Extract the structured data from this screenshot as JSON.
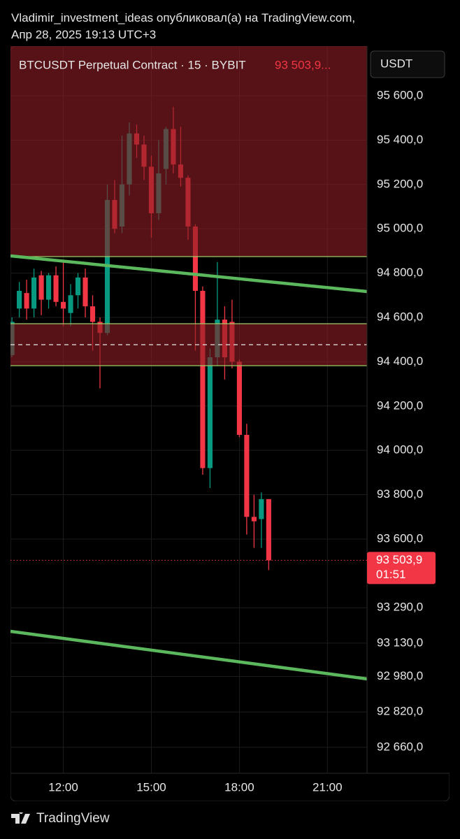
{
  "publisher": "Vladimir_investment_ideas опубликовал(а) на TradingView.com,",
  "date": "Апр 28, 2025 19:13 UTC+3",
  "currency_button": "USDT",
  "footer": "TradingView",
  "chart_data": {
    "type": "candlestick",
    "title": "BTCUSDT Perpetual Contract · 15 · BYBIT",
    "header_price": "93 503,9...",
    "up_color": "#089981",
    "down_color": "#f23645",
    "x": [
      10.25,
      10.5,
      10.75,
      11,
      11.25,
      11.5,
      11.75,
      12,
      12.25,
      12.5,
      12.75,
      13,
      13.25,
      13.5,
      13.75,
      14,
      14.25,
      14.5,
      14.75,
      15,
      15.25,
      15.5,
      15.75,
      16,
      16.25,
      16.5,
      16.75,
      17,
      17.25,
      17.5,
      17.75,
      18,
      18.25,
      18.5,
      18.75,
      19
    ],
    "open": [
      94430,
      94640,
      94710,
      94640,
      94790,
      94680,
      94790,
      94670,
      94620,
      94700,
      94780,
      94650,
      94580,
      94530,
      95130,
      95010,
      95200,
      95430,
      95380,
      95280,
      95070,
      95270,
      95450,
      95290,
      95230,
      95010,
      94720,
      93920,
      94420,
      94590,
      94580,
      94400,
      94070,
      93700,
      93690,
      93780
    ],
    "high": [
      94600,
      94760,
      94770,
      94820,
      94810,
      94800,
      94830,
      94850,
      94750,
      94800,
      94820,
      94700,
      94600,
      95200,
      95220,
      95420,
      95480,
      95470,
      95420,
      95330,
      95400,
      95460,
      95550,
      95460,
      95240,
      95020,
      94740,
      94460,
      94850,
      94650,
      94680,
      94410,
      94120,
      93800,
      93810,
      93780
    ],
    "low": [
      94420,
      94600,
      94590,
      94600,
      94610,
      94640,
      94650,
      94560,
      94560,
      94640,
      94600,
      94450,
      94280,
      94520,
      94980,
      94980,
      95150,
      95320,
      95220,
      94960,
      95040,
      95200,
      95250,
      95190,
      94950,
      94450,
      93890,
      93830,
      94380,
      94320,
      94370,
      94060,
      93620,
      93560,
      93560,
      93460
    ],
    "close": [
      94580,
      94720,
      94640,
      94780,
      94680,
      94790,
      94670,
      94640,
      94700,
      94780,
      94650,
      94580,
      94530,
      95130,
      95000,
      95200,
      95430,
      95380,
      95280,
      95070,
      95250,
      95450,
      95290,
      95230,
      95010,
      94720,
      93920,
      94420,
      94590,
      94420,
      94400,
      94070,
      93700,
      93680,
      93780,
      93503.9
    ],
    "xlim": [
      10.2,
      22.35
    ],
    "xticks": [
      {
        "value": 12,
        "label": "12:00"
      },
      {
        "value": 15,
        "label": "15:00"
      },
      {
        "value": 18,
        "label": "18:00"
      },
      {
        "value": 21,
        "label": "21:00"
      }
    ],
    "ylim": [
      92543,
      95824
    ],
    "yticks": [
      {
        "value": 95600,
        "label": "95 600,0"
      },
      {
        "value": 95400,
        "label": "95 400,0"
      },
      {
        "value": 95200,
        "label": "95 200,0"
      },
      {
        "value": 95000,
        "label": "95 000,0"
      },
      {
        "value": 94800,
        "label": "94 800,0"
      },
      {
        "value": 94600,
        "label": "94 600,0"
      },
      {
        "value": 94400,
        "label": "94 400,0"
      },
      {
        "value": 94200,
        "label": "94 200,0"
      },
      {
        "value": 94000,
        "label": "94 000,0"
      },
      {
        "value": 93800,
        "label": "93 800,0"
      },
      {
        "value": 93600,
        "label": "93 600,0"
      },
      {
        "value": 93290,
        "label": "93 290,0"
      },
      {
        "value": 93130,
        "label": "93 130,0"
      },
      {
        "value": 92980,
        "label": "92 980,0"
      },
      {
        "value": 92820,
        "label": "92 820,0"
      },
      {
        "value": 92660,
        "label": "92 660,0"
      }
    ],
    "grid": true,
    "last_price": {
      "value": 93503.9,
      "label": "93 503,9"
    },
    "countdown": "01:51"
  }
}
